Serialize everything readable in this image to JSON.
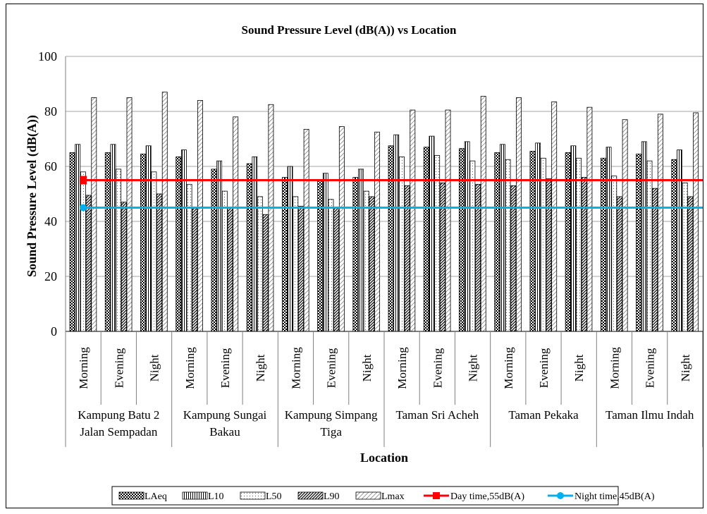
{
  "chart_data": {
    "type": "bar",
    "title": "Sound Pressure Level (dB(A)) vs Location",
    "xlabel": "Location",
    "ylabel": "Sound Pressure Level (dB(A))",
    "ylim": [
      0,
      100
    ],
    "yticks": [
      0,
      20,
      40,
      60,
      80,
      100
    ],
    "grid": true,
    "legend_position": "bottom",
    "groups": [
      {
        "label": "Kampung Batu 2 Jalan Sempadan",
        "lines": [
          "Kampung Batu 2",
          "Jalan Sempadan"
        ]
      },
      {
        "label": "Kampung Sungai Bakau",
        "lines": [
          "Kampung Sungai",
          "Bakau"
        ]
      },
      {
        "label": "Kampung Simpang Tiga",
        "lines": [
          "Kampung Simpang",
          "Tiga"
        ]
      },
      {
        "label": "Taman Sri Acheh",
        "lines": [
          "Taman Sri Acheh"
        ]
      },
      {
        "label": "Taman Pekaka",
        "lines": [
          "Taman Pekaka"
        ]
      },
      {
        "label": "Taman Ilmu Indah",
        "lines": [
          "Taman Ilmu Indah"
        ]
      }
    ],
    "subcategories": [
      "Morning",
      "Evening",
      "Night"
    ],
    "series": [
      {
        "name": "LAeq",
        "pattern": "checker",
        "values": [
          65,
          65,
          64.5,
          63.5,
          59,
          61,
          56,
          55,
          56,
          67.5,
          67,
          66.5,
          65,
          65.5,
          65,
          63,
          64.5,
          62.5
        ]
      },
      {
        "name": "L10",
        "pattern": "vlines",
        "values": [
          68,
          68,
          67.5,
          66,
          62,
          63.5,
          60,
          57.5,
          59,
          71.5,
          71,
          69,
          68,
          68.5,
          67.5,
          67,
          69,
          66
        ]
      },
      {
        "name": "L50",
        "pattern": "dots",
        "values": [
          58,
          59,
          58,
          53.5,
          51,
          49,
          49,
          48,
          51,
          63.5,
          64,
          62,
          62.5,
          63,
          63,
          56.5,
          62,
          54
        ]
      },
      {
        "name": "L90",
        "pattern": "diag",
        "values": [
          49.5,
          47,
          50,
          45,
          45,
          42.5,
          45.5,
          45,
          49,
          53,
          54,
          53.5,
          53,
          55.5,
          56,
          49,
          52,
          49
        ]
      },
      {
        "name": "Lmax",
        "pattern": "wave",
        "values": [
          85,
          85,
          87,
          84,
          78,
          82.5,
          73.5,
          74.5,
          72.5,
          80.5,
          80.5,
          85.5,
          85,
          83.5,
          81.5,
          77,
          79,
          79.5
        ]
      }
    ],
    "reference_lines": [
      {
        "name": "Day time,55dB(A)",
        "value": 55,
        "color": "#ff0000"
      },
      {
        "name": "Night time,45dB(A)",
        "value": 45,
        "color": "#00b0f0"
      }
    ]
  }
}
